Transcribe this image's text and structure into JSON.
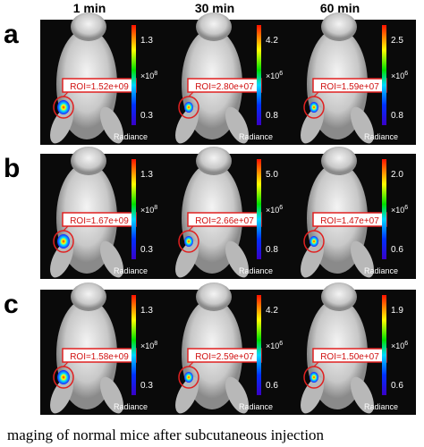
{
  "column_headers": [
    "1 min",
    "30 min",
    "60 min"
  ],
  "colorbar_label": "Radiance",
  "multiplier": "×10",
  "rows": [
    {
      "label": "a",
      "panels": [
        {
          "roi": "ROI=1.52e+09",
          "scale_top": "1.3",
          "scale_bottom": "0.3",
          "exponent": "8"
        },
        {
          "roi": "ROI=2.80e+07",
          "scale_top": "4.2",
          "scale_bottom": "0.8",
          "exponent": "6"
        },
        {
          "roi": "ROI=1.59e+07",
          "scale_top": "2.5",
          "scale_bottom": "0.8",
          "exponent": "6"
        }
      ]
    },
    {
      "label": "b",
      "panels": [
        {
          "roi": "ROI=1.67e+09",
          "scale_top": "1.3",
          "scale_bottom": "0.3",
          "exponent": "8"
        },
        {
          "roi": "ROI=2.66e+07",
          "scale_top": "5.0",
          "scale_bottom": "0.8",
          "exponent": "6"
        },
        {
          "roi": "ROI=1.47e+07",
          "scale_top": "2.0",
          "scale_bottom": "0.6",
          "exponent": "6"
        }
      ]
    },
    {
      "label": "c",
      "panels": [
        {
          "roi": "ROI=1.58e+09",
          "scale_top": "1.3",
          "scale_bottom": "0.3",
          "exponent": "8"
        },
        {
          "roi": "ROI=2.59e+07",
          "scale_top": "4.2",
          "scale_bottom": "0.6",
          "exponent": "6"
        },
        {
          "roi": "ROI=1.50e+07",
          "scale_top": "1.9",
          "scale_bottom": "0.6",
          "exponent": "6"
        }
      ]
    }
  ],
  "caption": "maging of normal mice after subcutaneous injection"
}
